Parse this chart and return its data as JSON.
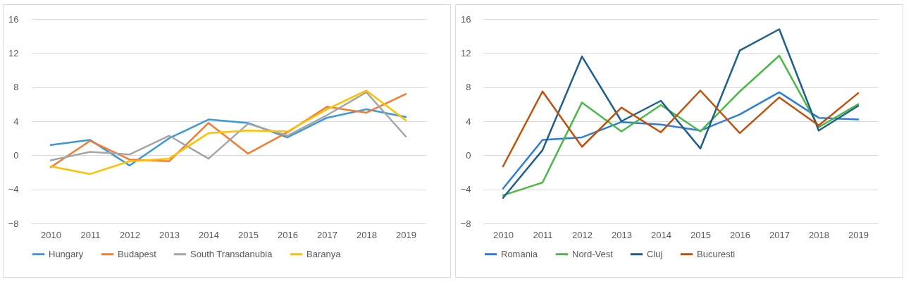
{
  "chart_data": [
    {
      "type": "line",
      "categories": [
        "2010",
        "2011",
        "2012",
        "2013",
        "2014",
        "2015",
        "2016",
        "2017",
        "2018",
        "2019"
      ],
      "ylim": [
        -8,
        16
      ],
      "yticks": [
        -8,
        -4,
        0,
        4,
        8,
        12,
        16
      ],
      "grid": "y",
      "legend": "bottom",
      "series": [
        {
          "name": "Hungary",
          "color": "#3a9ad9",
          "values": [
            1.2,
            1.8,
            -1.2,
            2.0,
            4.2,
            3.8,
            2.1,
            4.4,
            5.4,
            4.5
          ]
        },
        {
          "name": "Budapest",
          "color": "#f47c30",
          "values": [
            -1.4,
            1.7,
            -0.5,
            -0.7,
            3.8,
            0.2,
            2.7,
            5.7,
            5.0,
            7.2
          ]
        },
        {
          "name": "South Transdanubia",
          "color": "#a5a5a5",
          "values": [
            -0.6,
            0.4,
            0.1,
            2.3,
            -0.4,
            3.7,
            2.3,
            4.7,
            7.4,
            2.2
          ]
        },
        {
          "name": "Baranya",
          "color": "#ffc000",
          "values": [
            -1.3,
            -2.2,
            -0.7,
            -0.4,
            2.6,
            2.9,
            2.8,
            5.4,
            7.6,
            4.1
          ]
        }
      ]
    },
    {
      "type": "line",
      "categories": [
        "2010",
        "2011",
        "2012",
        "2013",
        "2014",
        "2015",
        "2016",
        "2017",
        "2018",
        "2019"
      ],
      "ylim": [
        -8,
        16
      ],
      "yticks": [
        -8,
        -4,
        0,
        4,
        8,
        12,
        16
      ],
      "grid": "y",
      "legend": "bottom",
      "series": [
        {
          "name": "Romania",
          "color": "#2e7dd7",
          "values": [
            -3.9,
            1.8,
            2.1,
            3.9,
            3.6,
            2.9,
            4.8,
            7.4,
            4.4,
            4.2
          ]
        },
        {
          "name": "Nord-Vest",
          "color": "#4cb848",
          "values": [
            -4.7,
            -3.2,
            6.2,
            2.8,
            5.9,
            2.8,
            7.5,
            11.7,
            3.3,
            6.0
          ]
        },
        {
          "name": "Cluj",
          "color": "#1f5f8b",
          "values": [
            -5.0,
            0.6,
            11.6,
            4.0,
            6.4,
            0.8,
            12.3,
            14.8,
            2.9,
            5.8
          ]
        },
        {
          "name": "Bucuresti",
          "color": "#c0500a",
          "values": [
            -1.3,
            7.5,
            1.0,
            5.6,
            2.7,
            7.6,
            2.6,
            6.8,
            3.5,
            7.3
          ]
        }
      ]
    }
  ]
}
